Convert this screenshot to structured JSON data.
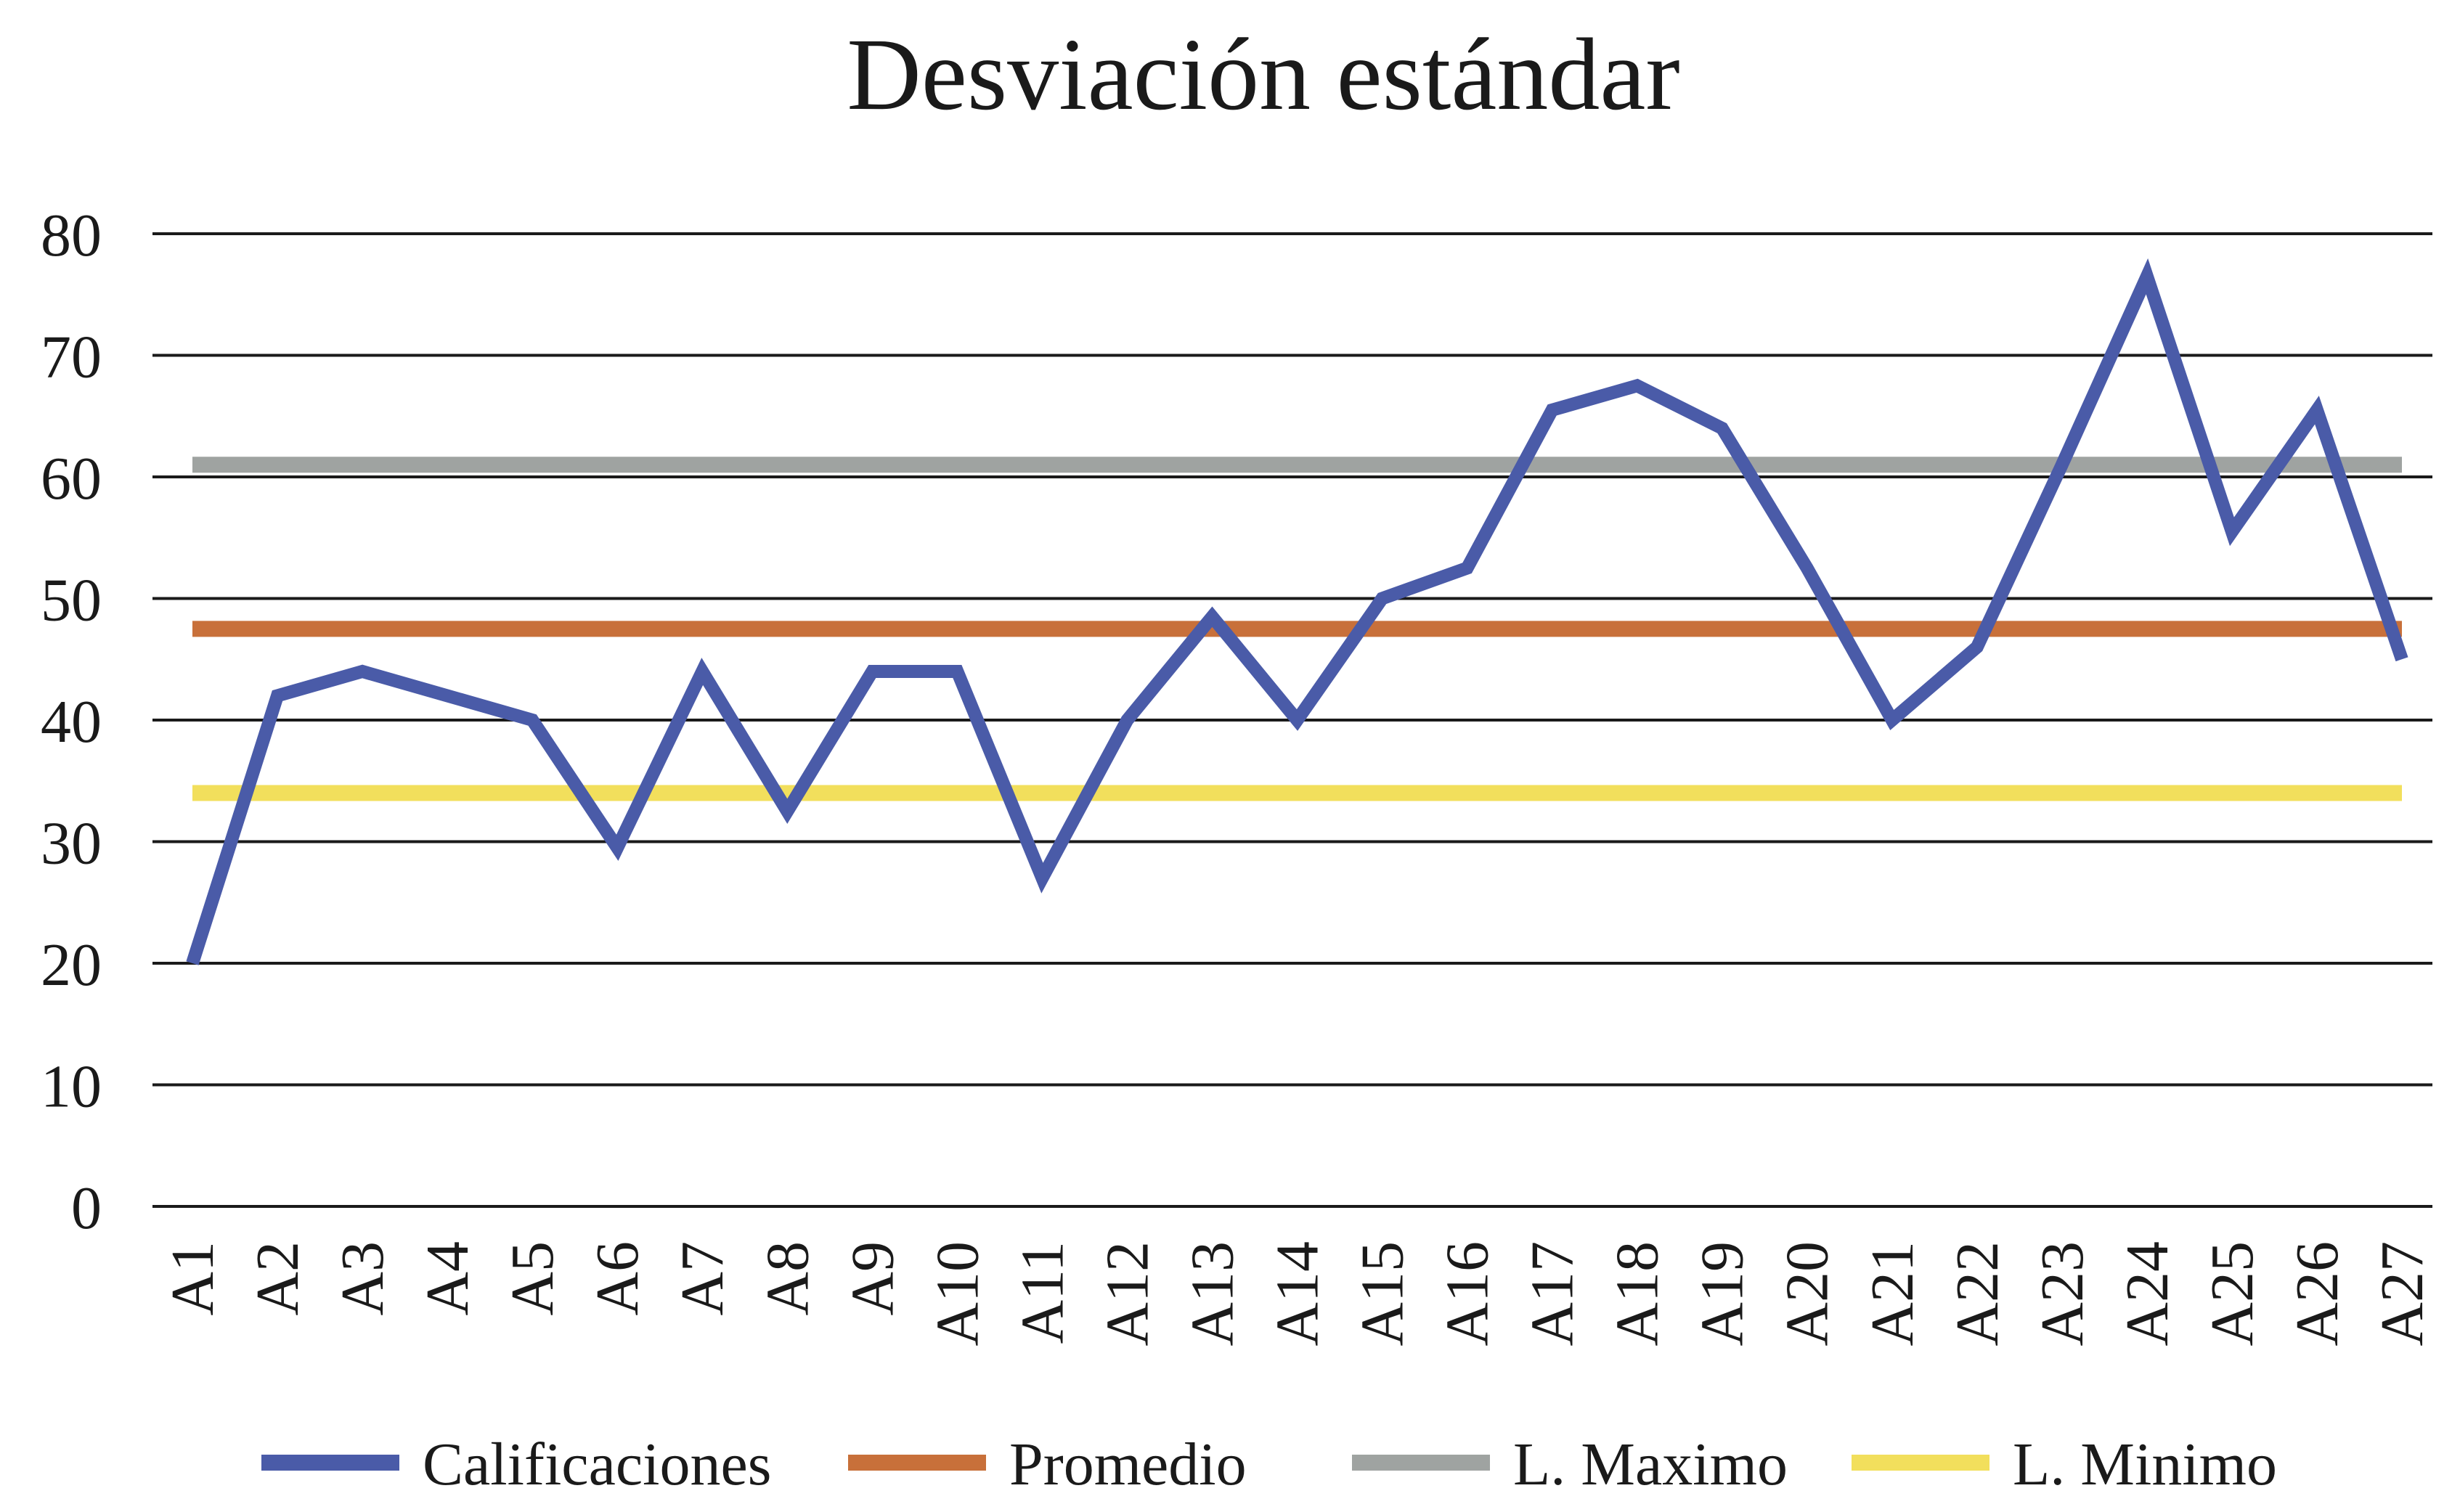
{
  "chart_data": {
    "type": "line",
    "title": "Desviación estándar",
    "xlabel": "",
    "ylabel": "",
    "ylim": [
      0,
      80
    ],
    "yticks": [
      0,
      10,
      20,
      30,
      40,
      50,
      60,
      70,
      80
    ],
    "grid": true,
    "legend_position": "bottom",
    "categories": [
      "A1",
      "A2",
      "A3",
      "A4",
      "A5",
      "A6",
      "A7",
      "A8",
      "A9",
      "A10",
      "A11",
      "A12",
      "A13",
      "A14",
      "A15",
      "A16",
      "A17",
      "A18",
      "A19",
      "A20",
      "A21",
      "A22",
      "A23",
      "A24",
      "A25",
      "A26",
      "A27"
    ],
    "series": [
      {
        "name": "Calificaciones",
        "color": "#4a5ba8",
        "values": [
          20,
          42,
          44,
          42,
          40,
          29.5,
          44,
          32.5,
          44,
          44,
          27,
          40,
          48.5,
          40,
          50,
          52.5,
          65.5,
          67.5,
          64,
          52.5,
          40,
          46,
          61,
          76.5,
          55.5,
          65.5,
          45
        ]
      },
      {
        "name": "Promedio",
        "color": "#c8703a",
        "values": [
          47.5,
          47.5,
          47.5,
          47.5,
          47.5,
          47.5,
          47.5,
          47.5,
          47.5,
          47.5,
          47.5,
          47.5,
          47.5,
          47.5,
          47.5,
          47.5,
          47.5,
          47.5,
          47.5,
          47.5,
          47.5,
          47.5,
          47.5,
          47.5,
          47.5,
          47.5,
          47.5
        ]
      },
      {
        "name": "L. Maximo",
        "color": "#9fa3a1",
        "values": [
          61,
          61,
          61,
          61,
          61,
          61,
          61,
          61,
          61,
          61,
          61,
          61,
          61,
          61,
          61,
          61,
          61,
          61,
          61,
          61,
          61,
          61,
          61,
          61,
          61,
          61,
          61
        ]
      },
      {
        "name": "L. Minimo",
        "color": "#f2df5c",
        "values": [
          34,
          34,
          34,
          34,
          34,
          34,
          34,
          34,
          34,
          34,
          34,
          34,
          34,
          34,
          34,
          34,
          34,
          34,
          34,
          34,
          34,
          34,
          34,
          34,
          34,
          34,
          34
        ]
      }
    ]
  }
}
